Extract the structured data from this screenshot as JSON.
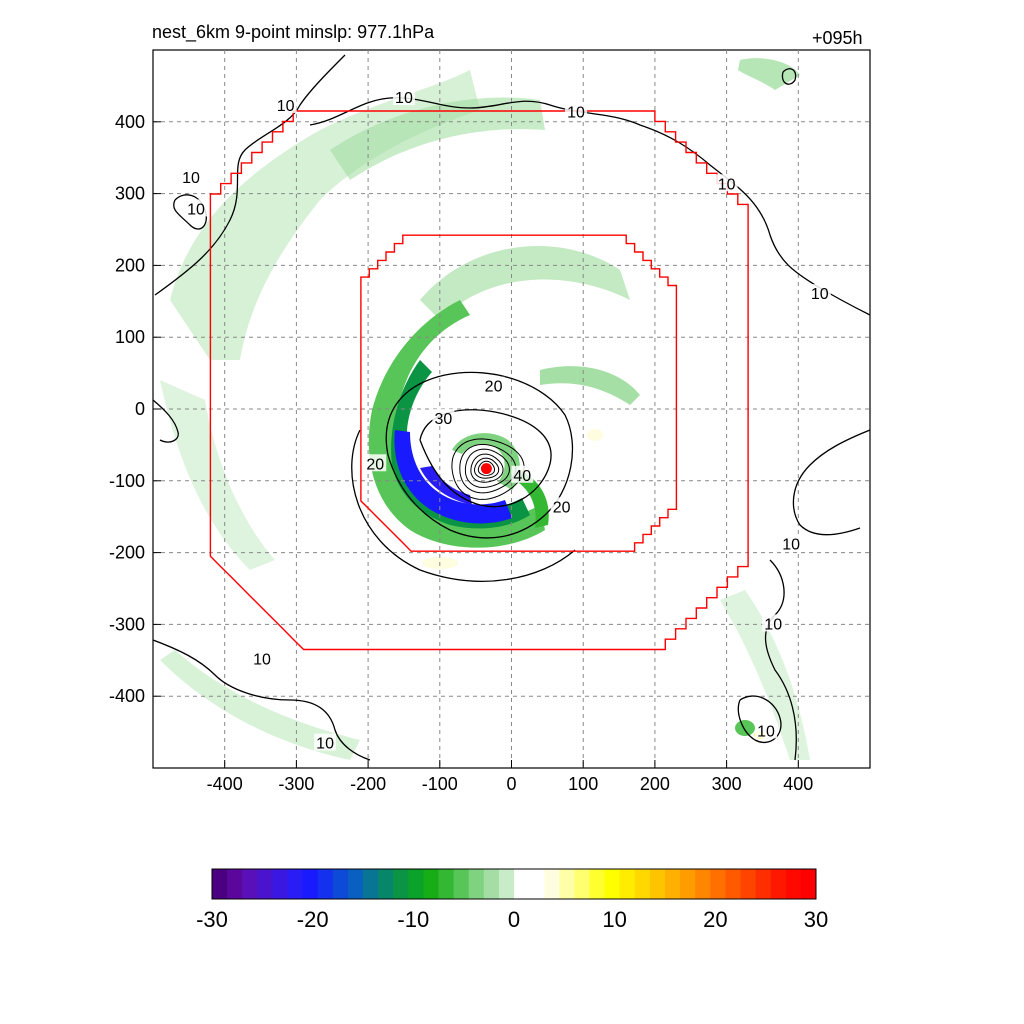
{
  "chart_data": {
    "type": "heatmap",
    "title_left": "nest_6km  9-point minslp: 977.1hPa",
    "title_right": "+095h",
    "xlabel": "",
    "ylabel": "",
    "xlim": [
      -500,
      500
    ],
    "ylim": [
      -500,
      500
    ],
    "x_ticks": [
      -400,
      -300,
      -200,
      -100,
      0,
      100,
      200,
      300,
      400
    ],
    "y_ticks": [
      400,
      300,
      200,
      100,
      0,
      -100,
      -200,
      -300,
      -400
    ],
    "grid": true,
    "storm_center": {
      "x": -35,
      "y": -83
    },
    "colorbar": {
      "min": -30,
      "max": 30,
      "ticks": [
        -30,
        -20,
        -10,
        0,
        10,
        20,
        30
      ],
      "colors": [
        "#4b0082",
        "#5c079c",
        "#5a10b8",
        "#4a14cf",
        "#3a18e2",
        "#2a1cf5",
        "#1a1aff",
        "#1432ee",
        "#0e4ad8",
        "#0a60c0",
        "#087594",
        "#08866a",
        "#0a9444",
        "#0aa228",
        "#16ad16",
        "#34b834",
        "#58c558",
        "#7fd27f",
        "#a4dea4",
        "#c8ecc8",
        "#ffffff",
        "#ffffff",
        "#fffde0",
        "#ffffa8",
        "#ffff70",
        "#ffff30",
        "#ffff00",
        "#ffec00",
        "#ffd800",
        "#ffc400",
        "#ffb000",
        "#ff9c00",
        "#ff8600",
        "#ff7000",
        "#ff5a00",
        "#ff4400",
        "#ff2e00",
        "#ff1800",
        "#ff0800",
        "#ff0000"
      ]
    },
    "contour_levels": [
      10,
      20,
      30,
      40
    ],
    "contour_labels": [
      {
        "text": "10",
        "x": -315,
        "y": 422
      },
      {
        "text": "10",
        "x": -150,
        "y": 433
      },
      {
        "text": "10",
        "x": 90,
        "y": 413
      },
      {
        "text": "10",
        "x": -447,
        "y": 322
      },
      {
        "text": "10",
        "x": -440,
        "y": 278
      },
      {
        "text": "10",
        "x": 300,
        "y": 313
      },
      {
        "text": "10",
        "x": 430,
        "y": 160
      },
      {
        "text": "20",
        "x": -25,
        "y": 31
      },
      {
        "text": "30",
        "x": -95,
        "y": -14
      },
      {
        "text": "20",
        "x": -190,
        "y": -77
      },
      {
        "text": "40",
        "x": 15,
        "y": -93
      },
      {
        "text": "20",
        "x": 70,
        "y": -137
      },
      {
        "text": "10",
        "x": 390,
        "y": -189
      },
      {
        "text": "10",
        "x": 365,
        "y": -300
      },
      {
        "text": "10",
        "x": -348,
        "y": -349
      },
      {
        "text": "10",
        "x": -260,
        "y": -466
      },
      {
        "text": "10",
        "x": 355,
        "y": -449
      }
    ],
    "inner_box_label": "",
    "outer_box_label": ""
  }
}
